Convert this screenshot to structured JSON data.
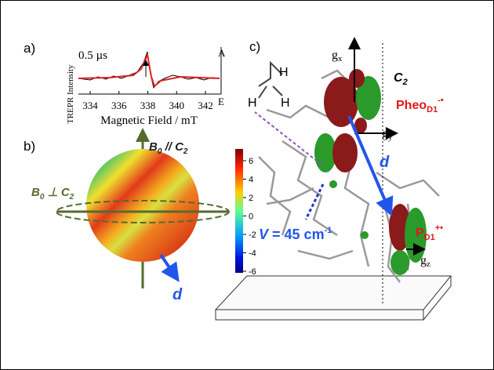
{
  "panel_a": {
    "label": "a)",
    "time": "0.5 µs",
    "y_axis": "TREPR Intensity",
    "x_axis": "Magnetic Field / mT",
    "xticks": [
      334,
      336,
      338,
      340,
      342
    ],
    "absorption": "A",
    "emission": "E"
  },
  "panel_b": {
    "label": "b)",
    "field_parallel": [
      "B",
      "0",
      " // ",
      "C",
      "2"
    ],
    "field_perpendicular": [
      "B",
      "0",
      " ⊥ ",
      "C",
      "2"
    ],
    "dipole": "d",
    "colorbar_ticks": [
      6,
      4,
      2,
      0,
      -2,
      -4,
      -6
    ]
  },
  "panel_c": {
    "label": "c)",
    "gx": [
      "g",
      "x"
    ],
    "gy": [
      "g",
      "y"
    ],
    "gz": [
      "g",
      "z"
    ],
    "axis": [
      "C",
      "2"
    ],
    "pheo": [
      "Pheo",
      "D1",
      "-•"
    ],
    "p": [
      "P",
      "D1",
      "+•"
    ],
    "dipole": "d",
    "coupling": [
      "V",
      " = 45 cm",
      "-1"
    ],
    "hydrogens": [
      "H",
      "H",
      "H"
    ]
  }
}
